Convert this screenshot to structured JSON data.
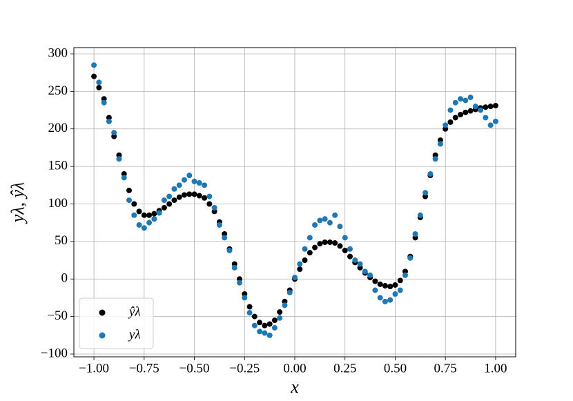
{
  "chart_data": {
    "type": "scatter",
    "x_label": "x",
    "y_label": "yλ, ŷλ",
    "x": [
      -1.0,
      -0.975,
      -0.95,
      -0.925,
      -0.9,
      -0.875,
      -0.85,
      -0.825,
      -0.8,
      -0.775,
      -0.75,
      -0.725,
      -0.7,
      -0.675,
      -0.65,
      -0.625,
      -0.6,
      -0.575,
      -0.55,
      -0.525,
      -0.5,
      -0.475,
      -0.45,
      -0.425,
      -0.4,
      -0.375,
      -0.35,
      -0.325,
      -0.3,
      -0.275,
      -0.25,
      -0.225,
      -0.2,
      -0.175,
      -0.15,
      -0.125,
      -0.1,
      -0.075,
      -0.05,
      -0.025,
      0,
      0.025,
      0.05,
      0.075,
      0.1,
      0.125,
      0.15,
      0.175,
      0.2,
      0.225,
      0.25,
      0.275,
      0.3,
      0.325,
      0.35,
      0.375,
      0.4,
      0.425,
      0.45,
      0.475,
      0.5,
      0.525,
      0.55,
      0.575,
      0.6,
      0.625,
      0.65,
      0.675,
      0.7,
      0.725,
      0.75,
      0.775,
      0.8,
      0.825,
      0.85,
      0.875,
      0.9,
      0.925,
      0.95,
      0.975,
      1.0
    ],
    "series": [
      {
        "name": "ŷλ",
        "color": "#000000",
        "values": [
          270,
          255,
          240,
          215,
          190,
          165,
          140,
          118,
          100,
          90,
          85,
          85,
          87,
          91,
          95,
          100,
          105,
          109,
          112,
          113,
          113,
          111,
          108,
          100,
          90,
          76,
          60,
          40,
          20,
          0,
          -20,
          -37,
          -50,
          -58,
          -62,
          -60,
          -55,
          -44,
          -30,
          -15,
          0,
          13,
          25,
          35,
          42,
          47,
          49,
          49,
          48,
          44,
          38,
          30,
          22,
          15,
          8,
          2,
          -3,
          -7,
          -9,
          -10,
          -8,
          -2,
          10,
          30,
          55,
          82,
          110,
          138,
          165,
          185,
          200,
          209,
          215,
          219,
          222,
          224,
          226,
          228,
          229,
          230,
          231
        ]
      },
      {
        "name": "yλ",
        "color": "#1f77b4",
        "values": [
          285,
          262,
          235,
          210,
          195,
          160,
          135,
          105,
          85,
          72,
          68,
          75,
          80,
          88,
          105,
          110,
          120,
          125,
          132,
          138,
          130,
          128,
          125,
          110,
          95,
          72,
          55,
          38,
          15,
          -5,
          -25,
          -45,
          -62,
          -70,
          -72,
          -75,
          -65,
          -52,
          -35,
          -18,
          2,
          20,
          40,
          55,
          72,
          78,
          80,
          75,
          85,
          70,
          55,
          40,
          25,
          20,
          10,
          5,
          -15,
          -25,
          -30,
          -28,
          -20,
          -15,
          5,
          28,
          60,
          85,
          115,
          140,
          160,
          180,
          205,
          225,
          235,
          240,
          238,
          242,
          230,
          225,
          215,
          205,
          210
        ]
      }
    ],
    "xlim": [
      -1.1,
      1.1
    ],
    "ylim": [
      -103.7,
      308.3
    ],
    "xticks": [
      {
        "value": -1.0,
        "label": "−1.00"
      },
      {
        "value": -0.75,
        "label": "−0.75"
      },
      {
        "value": -0.5,
        "label": "−0.50"
      },
      {
        "value": -0.25,
        "label": "−0.25"
      },
      {
        "value": 0,
        "label": "0.00"
      },
      {
        "value": 0.25,
        "label": "0.25"
      },
      {
        "value": 0.5,
        "label": "0.50"
      },
      {
        "value": 0.75,
        "label": "0.75"
      },
      {
        "value": 1.0,
        "label": "1.00"
      }
    ],
    "yticks": [
      {
        "value": -100,
        "label": "−100"
      },
      {
        "value": -50,
        "label": "−50"
      },
      0,
      50,
      100,
      150,
      200,
      250,
      300
    ],
    "grid": true,
    "legend": "lower left"
  }
}
